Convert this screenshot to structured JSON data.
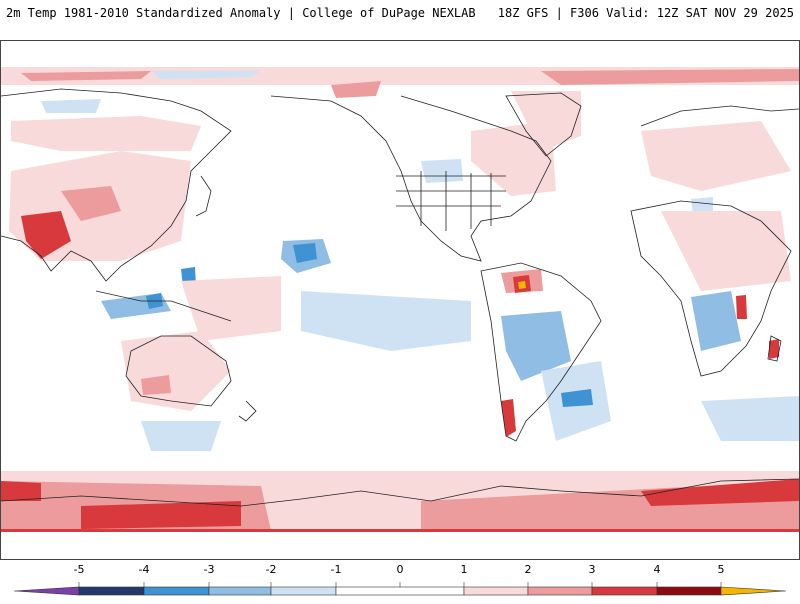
{
  "header": {
    "title": "2m Temp 1981-2010 Standardized Anomaly | College of DuPage NEXLAB",
    "run_info": "18Z GFS | F306 Valid: 12Z SAT NOV 29 2025"
  },
  "colorbar": {
    "ticks": [
      "-5",
      "-4",
      "-3",
      "-2",
      "-1",
      "0",
      "1",
      "2",
      "3",
      "4",
      "5"
    ],
    "colors": {
      "n5": "#7e3fa8",
      "n4": "#24386b",
      "n3": "#3f93d3",
      "n2": "#8fbde3",
      "n1": "#cfe2f4",
      "zero": "#ffffff",
      "p1": "#f8dada",
      "p2": "#ec9c9c",
      "p3": "#d8393d",
      "p4": "#8c0b11",
      "p5": "#f6b500"
    }
  },
  "map": {
    "projection": "equirectangular",
    "region": "global",
    "colors": {
      "coast": "#222222",
      "warm_light": "#f8dada",
      "warm_mid": "#ec9c9c",
      "warm_strong": "#d8393d",
      "cool_light": "#cfe2f4",
      "cool_mid": "#8fbde3",
      "cool_strong": "#3f93d3"
    }
  }
}
